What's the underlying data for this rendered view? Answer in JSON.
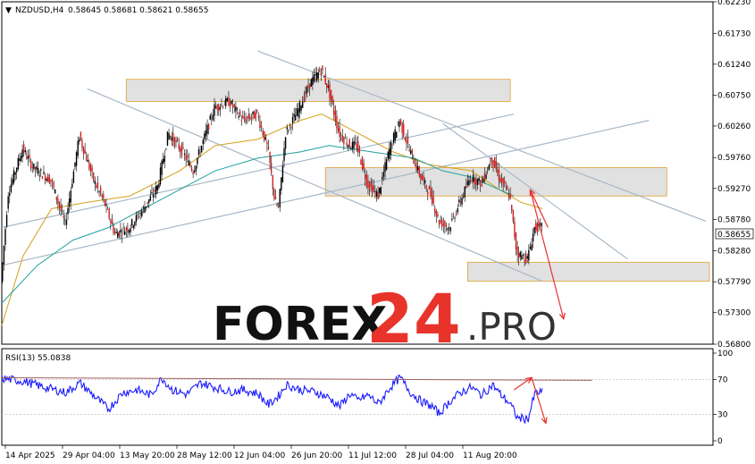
{
  "chart_data": {
    "type": "candlestick",
    "header": {
      "symbol": "NZDUSD,H4",
      "ohlc": "0.58645 0.58681 0.58621 0.58655"
    },
    "price_ticks": [
      "0.62230",
      "0.61730",
      "0.61240",
      "0.60750",
      "0.60260",
      "0.59760",
      "0.59270",
      "0.58780",
      "0.58280",
      "0.57790",
      "0.57300",
      "0.56800"
    ],
    "price_range": [
      0.568,
      0.6223
    ],
    "current_price": "0.58655",
    "time_ticks": [
      "14 Apr 2025",
      "29 Apr 04:00",
      "13 May 20:00",
      "28 May 12:00",
      "12 Jun 04:00",
      "26 Jun 20:00",
      "11 Jul 12:00",
      "28 Jul 04:00",
      "11 Aug 20:00"
    ],
    "price_path": [
      [
        0.0,
        0.578
      ],
      [
        0.01,
        0.592
      ],
      [
        0.03,
        0.599
      ],
      [
        0.045,
        0.596
      ],
      [
        0.07,
        0.594
      ],
      [
        0.09,
        0.587
      ],
      [
        0.11,
        0.601
      ],
      [
        0.13,
        0.594
      ],
      [
        0.145,
        0.5905
      ],
      [
        0.16,
        0.5855
      ],
      [
        0.18,
        0.5865
      ],
      [
        0.2,
        0.5895
      ],
      [
        0.22,
        0.593
      ],
      [
        0.235,
        0.6015
      ],
      [
        0.255,
        0.5985
      ],
      [
        0.27,
        0.5955
      ],
      [
        0.285,
        0.6005
      ],
      [
        0.3,
        0.6055
      ],
      [
        0.32,
        0.6065
      ],
      [
        0.34,
        0.6035
      ],
      [
        0.36,
        0.6045
      ],
      [
        0.375,
        0.599
      ],
      [
        0.385,
        0.5905
      ],
      [
        0.39,
        0.5895
      ],
      [
        0.4,
        0.6015
      ],
      [
        0.415,
        0.6045
      ],
      [
        0.435,
        0.6095
      ],
      [
        0.45,
        0.6115
      ],
      [
        0.46,
        0.6085
      ],
      [
        0.475,
        0.6015
      ],
      [
        0.49,
        0.5995
      ],
      [
        0.5,
        0.5995
      ],
      [
        0.515,
        0.5935
      ],
      [
        0.53,
        0.5915
      ],
      [
        0.545,
        0.5985
      ],
      [
        0.56,
        0.6035
      ],
      [
        0.575,
        0.5985
      ],
      [
        0.59,
        0.5945
      ],
      [
        0.605,
        0.5915
      ],
      [
        0.615,
        0.5875
      ],
      [
        0.63,
        0.5865
      ],
      [
        0.645,
        0.5905
      ],
      [
        0.66,
        0.5945
      ],
      [
        0.675,
        0.5935
      ],
      [
        0.69,
        0.5975
      ],
      [
        0.7,
        0.5945
      ],
      [
        0.715,
        0.5915
      ],
      [
        0.725,
        0.5825
      ],
      [
        0.74,
        0.5815
      ],
      [
        0.75,
        0.5865
      ],
      [
        0.76,
        0.5865
      ]
    ],
    "overlays": {
      "moving_averages": [
        {
          "color": "#d4a017",
          "path": [
            [
              0.0,
              0.571
            ],
            [
              0.03,
              0.582
            ],
            [
              0.07,
              0.5895
            ],
            [
              0.12,
              0.5905
            ],
            [
              0.18,
              0.5915
            ],
            [
              0.25,
              0.5955
            ],
            [
              0.3,
              0.5995
            ],
            [
              0.36,
              0.6005
            ],
            [
              0.42,
              0.6035
            ],
            [
              0.45,
              0.6045
            ],
            [
              0.5,
              0.6015
            ],
            [
              0.55,
              0.5985
            ],
            [
              0.6,
              0.5965
            ],
            [
              0.66,
              0.5955
            ],
            [
              0.7,
              0.5925
            ],
            [
              0.73,
              0.5905
            ],
            [
              0.76,
              0.5895
            ]
          ]
        },
        {
          "color": "#20a0a0",
          "path": [
            [
              0.0,
              0.5745
            ],
            [
              0.05,
              0.5805
            ],
            [
              0.1,
              0.5845
            ],
            [
              0.15,
              0.5865
            ],
            [
              0.2,
              0.5895
            ],
            [
              0.25,
              0.5925
            ],
            [
              0.3,
              0.5955
            ],
            [
              0.36,
              0.5975
            ],
            [
              0.42,
              0.5985
            ],
            [
              0.46,
              0.5995
            ],
            [
              0.52,
              0.5985
            ],
            [
              0.58,
              0.5975
            ],
            [
              0.62,
              0.5955
            ],
            [
              0.66,
              0.5945
            ],
            [
              0.7,
              0.5925
            ],
            [
              0.72,
              0.5915
            ]
          ]
        }
      ],
      "zones": [
        {
          "t": [
            0.175,
            0.715
          ],
          "p": [
            0.6065,
            0.61
          ]
        },
        {
          "t": [
            0.455,
            0.935
          ],
          "p": [
            0.5915,
            0.596
          ]
        },
        {
          "t": [
            0.655,
            0.995
          ],
          "p": [
            0.578,
            0.581
          ]
        }
      ],
      "trendlines": [
        {
          "from": [
            0.0,
            0.5865
          ],
          "to": [
            0.72,
            0.6045
          ],
          "color": "#a8b8c8"
        },
        {
          "from": [
            0.0,
            0.5805
          ],
          "to": [
            0.91,
            0.6035
          ],
          "color": "#a8b8c8"
        },
        {
          "from": [
            0.12,
            0.6085
          ],
          "to": [
            0.76,
            0.578
          ],
          "color": "#a8b8c8"
        },
        {
          "from": [
            0.36,
            0.6145
          ],
          "to": [
            0.99,
            0.5875
          ],
          "color": "#a8b8c8"
        },
        {
          "from": [
            0.62,
            0.603
          ],
          "to": [
            0.88,
            0.5815
          ],
          "color": "#a8b8c8"
        }
      ],
      "forecast": {
        "color": "#e83030",
        "path": [
          [
            0.768,
            0.5865
          ],
          [
            0.743,
            0.5925
          ],
          [
            0.79,
            0.572
          ]
        ]
      }
    },
    "rsi": {
      "label": "RSI(13) 55.0838",
      "ticks": [
        "100",
        "70",
        "30",
        "0"
      ],
      "levels": [
        30,
        70
      ],
      "range": [
        0,
        100
      ],
      "path": [
        [
          0.0,
          71
        ],
        [
          0.03,
          68
        ],
        [
          0.06,
          61
        ],
        [
          0.09,
          55
        ],
        [
          0.11,
          66
        ],
        [
          0.13,
          51
        ],
        [
          0.15,
          36
        ],
        [
          0.17,
          55
        ],
        [
          0.19,
          58
        ],
        [
          0.21,
          52
        ],
        [
          0.225,
          72
        ],
        [
          0.24,
          58
        ],
        [
          0.26,
          53
        ],
        [
          0.28,
          66
        ],
        [
          0.3,
          61
        ],
        [
          0.32,
          56
        ],
        [
          0.34,
          58
        ],
        [
          0.36,
          54
        ],
        [
          0.375,
          41
        ],
        [
          0.39,
          52
        ],
        [
          0.4,
          64
        ],
        [
          0.42,
          58
        ],
        [
          0.44,
          56
        ],
        [
          0.46,
          49
        ],
        [
          0.475,
          39
        ],
        [
          0.49,
          54
        ],
        [
          0.5,
          46
        ],
        [
          0.515,
          52
        ],
        [
          0.53,
          42
        ],
        [
          0.545,
          60
        ],
        [
          0.56,
          72
        ],
        [
          0.575,
          55
        ],
        [
          0.59,
          45
        ],
        [
          0.605,
          39
        ],
        [
          0.615,
          31
        ],
        [
          0.63,
          45
        ],
        [
          0.645,
          55
        ],
        [
          0.66,
          61
        ],
        [
          0.675,
          52
        ],
        [
          0.69,
          64
        ],
        [
          0.7,
          54
        ],
        [
          0.715,
          42
        ],
        [
          0.725,
          26
        ],
        [
          0.74,
          25
        ],
        [
          0.75,
          55
        ],
        [
          0.76,
          55
        ]
      ],
      "trendline": {
        "from": [
          0.0,
          72
        ],
        "to": [
          0.83,
          69
        ],
        "color": "#a06060"
      },
      "forecast": {
        "color": "#e83030",
        "path": [
          [
            0.72,
            58
          ],
          [
            0.745,
            72
          ],
          [
            0.765,
            20
          ]
        ]
      }
    }
  },
  "brand": {
    "part1": "FOREX",
    "part2": "24",
    "part3": ".PRO"
  }
}
